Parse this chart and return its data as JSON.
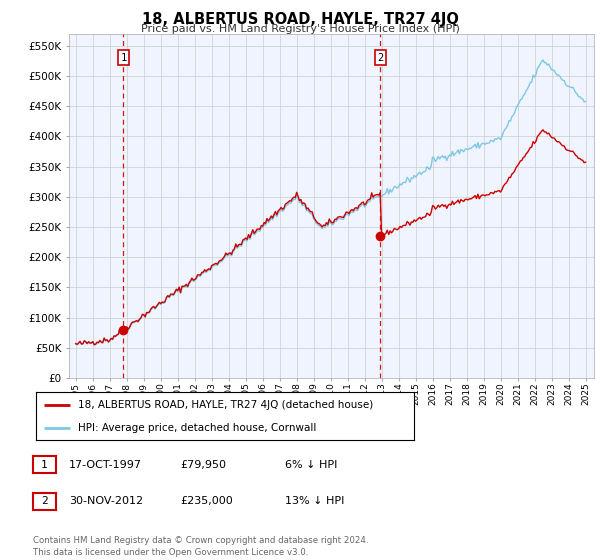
{
  "title": "18, ALBERTUS ROAD, HAYLE, TR27 4JQ",
  "subtitle": "Price paid vs. HM Land Registry's House Price Index (HPI)",
  "ylabel_ticks": [
    "£0",
    "£50K",
    "£100K",
    "£150K",
    "£200K",
    "£250K",
    "£300K",
    "£350K",
    "£400K",
    "£450K",
    "£500K",
    "£550K"
  ],
  "ytick_values": [
    0,
    50000,
    100000,
    150000,
    200000,
    250000,
    300000,
    350000,
    400000,
    450000,
    500000,
    550000
  ],
  "ylim": [
    0,
    570000
  ],
  "xlim_start": 1994.6,
  "xlim_end": 2025.5,
  "hpi_color": "#7ec8e3",
  "price_color": "#cc0000",
  "marker_color": "#cc0000",
  "dashed_color": "#cc0000",
  "transaction1_x": 1997.8,
  "transaction1_y": 79950,
  "transaction1_label": "1",
  "transaction2_x": 2012.92,
  "transaction2_y": 235000,
  "transaction2_label": "2",
  "legend_line1": "18, ALBERTUS ROAD, HAYLE, TR27 4JQ (detached house)",
  "legend_line2": "HPI: Average price, detached house, Cornwall",
  "table_row1": [
    "1",
    "17-OCT-1997",
    "£79,950",
    "6% ↓ HPI"
  ],
  "table_row2": [
    "2",
    "30-NOV-2012",
    "£235,000",
    "13% ↓ HPI"
  ],
  "footnote": "Contains HM Land Registry data © Crown copyright and database right 2024.\nThis data is licensed under the Open Government Licence v3.0.",
  "background_color": "#ffffff",
  "grid_color": "#cccccc",
  "chart_bg": "#f0f4ff"
}
